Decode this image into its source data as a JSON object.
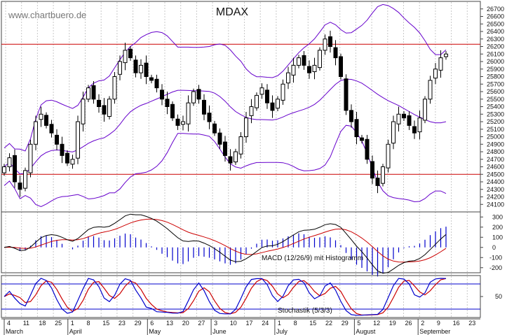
{
  "watermark": "www.chartbuero.de",
  "chart_data": [
    {
      "type": "candlestick",
      "title": "MDAX",
      "ylim": [
        24000,
        26800
      ],
      "y_ticks": [
        24100,
        24200,
        24300,
        24400,
        24500,
        24600,
        24700,
        24800,
        24900,
        25000,
        25100,
        25200,
        25300,
        25400,
        25500,
        25600,
        25700,
        25800,
        25900,
        26000,
        26100,
        26200,
        26300,
        26400,
        26500,
        26600,
        26700
      ],
      "x_tick_labels": [
        "4",
        "11",
        "18",
        "25",
        "1",
        "8",
        "15",
        "23",
        "29",
        "6",
        "13",
        "20",
        "27",
        "3",
        "10",
        "17",
        "24",
        "1",
        "8",
        "15",
        "22",
        "29",
        "5",
        "12",
        "19",
        "26",
        "2",
        "9",
        "16",
        "23"
      ],
      "month_labels": [
        "March",
        "April",
        "May",
        "June",
        "July",
        "August",
        "September"
      ],
      "horizontal_lines": [
        24500,
        26230
      ],
      "colors": {
        "resistance_lines": "#cc0000",
        "bollinger": "#6600cc",
        "candles": "#000000"
      },
      "closes": [
        24600,
        24720,
        24400,
        24300,
        24550,
        24900,
        25200,
        25300,
        25150,
        25050,
        24900,
        24750,
        24650,
        24700,
        25200,
        25500,
        25650,
        25500,
        25400,
        25300,
        25500,
        25800,
        26000,
        26150,
        26050,
        25850,
        25950,
        25800,
        25750,
        25650,
        25500,
        25400,
        25250,
        25150,
        25200,
        25450,
        25600,
        25500,
        25300,
        25200,
        25050,
        24900,
        24750,
        24650,
        24800,
        25000,
        25250,
        25400,
        25550,
        25650,
        25450,
        25350,
        25500,
        25700,
        25850,
        25950,
        26050,
        25950,
        25850,
        25950,
        26150,
        26300,
        26200,
        26050,
        25800,
        25350,
        25200,
        25000,
        24950,
        24700,
        24450,
        24350,
        24600,
        24900,
        25200,
        25300,
        25250,
        25150,
        25050,
        25250,
        25500,
        25750,
        25900,
        26050,
        26100
      ]
    },
    {
      "type": "line",
      "title": "MACD (12/26/9) mit Histogramm",
      "ylim": [
        -250,
        350
      ],
      "y_ticks": [
        300,
        200,
        100,
        0,
        -100,
        -200
      ],
      "series_colors": {
        "macd": "#000000",
        "signal": "#cc0000",
        "histogram": "#0000cc"
      }
    },
    {
      "type": "line",
      "title": "Stochastik (5/3/3)",
      "ylim": [
        0,
        100
      ],
      "y_ticks": [
        50
      ],
      "levels": [
        80,
        20
      ],
      "series_colors": {
        "k": "#0000cc",
        "d": "#cc0000",
        "levels": "#0000cc"
      }
    }
  ]
}
